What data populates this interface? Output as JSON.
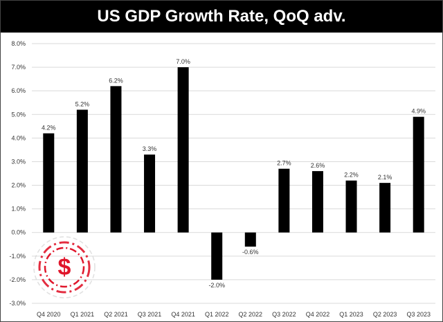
{
  "chart_data": {
    "type": "bar",
    "title": "US GDP Growth Rate, QoQ adv.",
    "xlabel": "",
    "ylabel": "",
    "categories": [
      "Q4 2020",
      "Q1 2021",
      "Q2 2021",
      "Q3 2021",
      "Q4 2021",
      "Q1 2022",
      "Q2 2022",
      "Q3 2022",
      "Q4 2022",
      "Q1 2023",
      "Q2 2023",
      "Q3 2023"
    ],
    "values": [
      4.2,
      5.2,
      6.2,
      3.3,
      7.0,
      -2.0,
      -0.6,
      2.7,
      2.6,
      2.2,
      2.1,
      4.9
    ],
    "ylim": [
      -3,
      8
    ],
    "yticks": [
      -3,
      -2,
      -1,
      0,
      1,
      2,
      3,
      4,
      5,
      6,
      7,
      8
    ],
    "grid": true,
    "legend": "none",
    "bar_color": "#000000",
    "logo_color": "#e0162b"
  }
}
